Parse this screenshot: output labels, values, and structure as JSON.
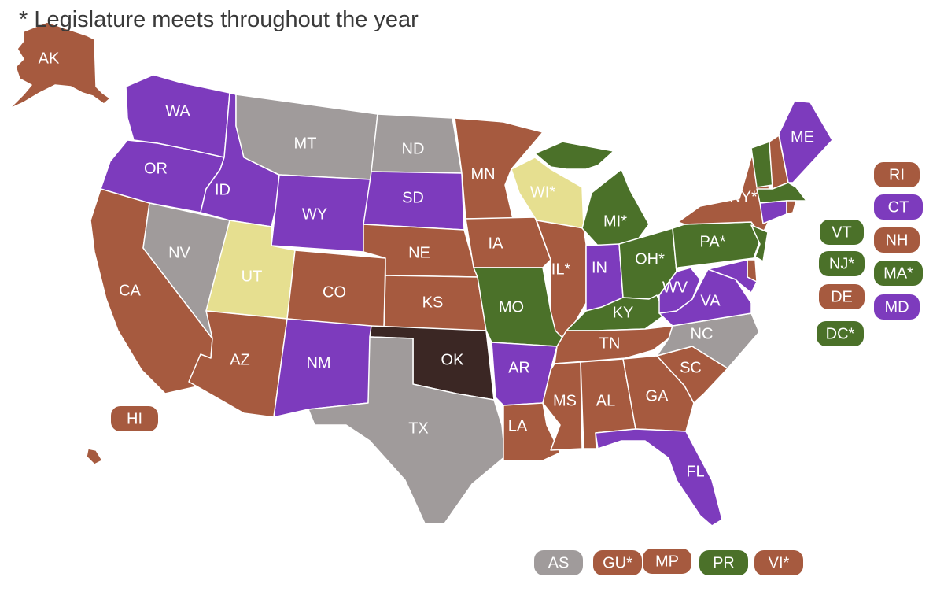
{
  "title": "* Legislature meets throughout the year",
  "regions": [
    {
      "label": "AK",
      "color": "#a65a3f"
    },
    {
      "label": "WA",
      "color": "#7d3bbd"
    },
    {
      "label": "OR",
      "color": "#7d3bbd"
    },
    {
      "label": "CA",
      "color": "#a65a3f"
    },
    {
      "label": "NV",
      "color": "#a09b9b"
    },
    {
      "label": "ID",
      "color": "#7d3bbd"
    },
    {
      "label": "MT",
      "color": "#a09b9b"
    },
    {
      "label": "WY",
      "color": "#7d3bbd"
    },
    {
      "label": "UT",
      "color": "#e6df90"
    },
    {
      "label": "CO",
      "color": "#a65a3f"
    },
    {
      "label": "AZ",
      "color": "#a65a3f"
    },
    {
      "label": "NM",
      "color": "#7d3bbd"
    },
    {
      "label": "ND",
      "color": "#a09b9b"
    },
    {
      "label": "SD",
      "color": "#7d3bbd"
    },
    {
      "label": "NE",
      "color": "#a65a3f"
    },
    {
      "label": "KS",
      "color": "#a65a3f"
    },
    {
      "label": "OK",
      "color": "#3b2724"
    },
    {
      "label": "TX",
      "color": "#a09b9b"
    },
    {
      "label": "MN",
      "color": "#a65a3f"
    },
    {
      "label": "IA",
      "color": "#a65a3f"
    },
    {
      "label": "MO",
      "color": "#4b7129"
    },
    {
      "label": "AR",
      "color": "#7d3bbd"
    },
    {
      "label": "LA",
      "color": "#a65a3f"
    },
    {
      "label": "WI*",
      "color": "#e6df90"
    },
    {
      "label": "IL*",
      "color": "#a65a3f"
    },
    {
      "label": "MI*",
      "color": "#4b7129"
    },
    {
      "label": "IN",
      "color": "#7d3bbd"
    },
    {
      "label": "OH*",
      "color": "#4b7129"
    },
    {
      "label": "KY",
      "color": "#4b7129"
    },
    {
      "label": "TN",
      "color": "#a65a3f"
    },
    {
      "label": "MS",
      "color": "#a65a3f"
    },
    {
      "label": "AL",
      "color": "#a65a3f"
    },
    {
      "label": "GA",
      "color": "#a65a3f"
    },
    {
      "label": "FL",
      "color": "#7d3bbd"
    },
    {
      "label": "SC",
      "color": "#a65a3f"
    },
    {
      "label": "NC",
      "color": "#a09b9b"
    },
    {
      "label": "VA",
      "color": "#7d3bbd"
    },
    {
      "label": "WV",
      "color": "#7d3bbd"
    },
    {
      "label": "PA*",
      "color": "#4b7129"
    },
    {
      "label": "NY*",
      "color": "#a65a3f"
    },
    {
      "label": "VT",
      "color": "#4b7129"
    },
    {
      "label": "NH",
      "color": "#a65a3f"
    },
    {
      "label": "ME",
      "color": "#7d3bbd"
    },
    {
      "label": "MA*",
      "color": "#4b7129"
    },
    {
      "label": "CT",
      "color": "#7d3bbd"
    },
    {
      "label": "RI",
      "color": "#a65a3f"
    },
    {
      "label": "NJ*",
      "color": "#4b7129"
    },
    {
      "label": "DE",
      "color": "#a65a3f"
    },
    {
      "label": "MD",
      "color": "#7d3bbd"
    },
    {
      "label": "DC*",
      "color": "#4b7129"
    },
    {
      "label": "HI",
      "color": "#a65a3f"
    },
    {
      "label": "AS",
      "color": "#a09b9b"
    },
    {
      "label": "GU*",
      "color": "#a65a3f"
    },
    {
      "label": "MP",
      "color": "#a65a3f"
    },
    {
      "label": "PR",
      "color": "#4b7129"
    },
    {
      "label": "VI*",
      "color": "#a65a3f"
    }
  ]
}
